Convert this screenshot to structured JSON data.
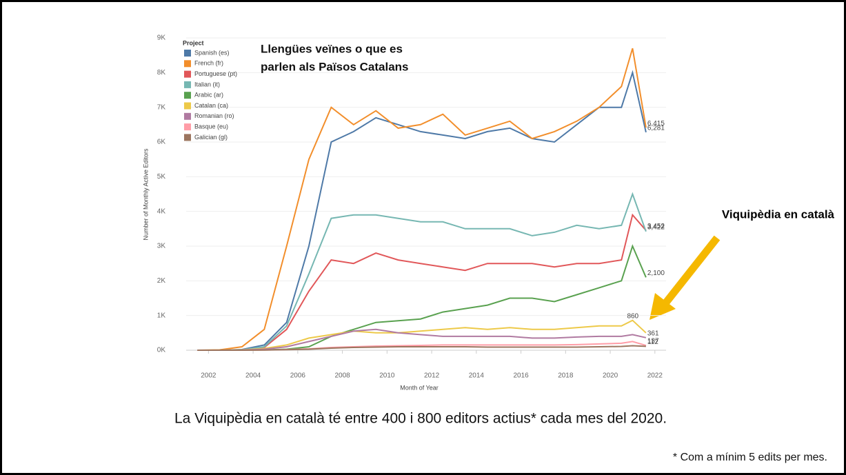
{
  "chart_data": {
    "type": "line",
    "annotation_lines": [
      "Llengües veïnes o que es",
      "parlen als Països Catalans"
    ],
    "legend_title": "Project",
    "x_label": "Month of Year",
    "y_label": "Number of Monthly Active Editors",
    "x": [
      2001.5,
      2002.5,
      2003.5,
      2004.5,
      2005.5,
      2006.5,
      2007.5,
      2008.5,
      2009.5,
      2010.5,
      2011.5,
      2012.5,
      2013.5,
      2014.5,
      2015.5,
      2016.5,
      2017.5,
      2018.5,
      2019.5,
      2020.5,
      2021,
      2021.6
    ],
    "series": [
      {
        "name": "Spanish (es)",
        "color": "#4e79a7",
        "values": [
          0,
          0,
          20,
          150,
          800,
          3000,
          6000,
          6300,
          6700,
          6500,
          6300,
          6200,
          6100,
          6300,
          6400,
          6100,
          6000,
          6500,
          7000,
          7000,
          8000,
          6281
        ],
        "value_labels": [
          null,
          null,
          null,
          null,
          null,
          null,
          null,
          null,
          null,
          null,
          null,
          null,
          null,
          null,
          null,
          null,
          null,
          null,
          null,
          null,
          null,
          "6,281"
        ]
      },
      {
        "name": "French (fr)",
        "color": "#f28e2b",
        "values": [
          0,
          10,
          100,
          600,
          3000,
          5500,
          7000,
          6500,
          6900,
          6400,
          6500,
          6800,
          6200,
          6400,
          6600,
          6100,
          6300,
          6600,
          7000,
          7600,
          8700,
          6415
        ],
        "value_labels": [
          null,
          null,
          null,
          null,
          null,
          null,
          null,
          null,
          null,
          null,
          null,
          null,
          null,
          null,
          null,
          null,
          null,
          null,
          null,
          null,
          null,
          "6,415"
        ]
      },
      {
        "name": "Portuguese (pt)",
        "color": "#e15759",
        "values": [
          0,
          0,
          10,
          80,
          600,
          1700,
          2600,
          2500,
          2800,
          2600,
          2500,
          2400,
          2300,
          2500,
          2500,
          2500,
          2400,
          2500,
          2500,
          2600,
          3900,
          3452
        ],
        "value_labels": [
          null,
          null,
          null,
          null,
          null,
          null,
          null,
          null,
          null,
          null,
          null,
          null,
          null,
          null,
          null,
          null,
          null,
          null,
          null,
          null,
          null,
          "3,452"
        ]
      },
      {
        "name": "Italian (it)",
        "color": "#76b7b2",
        "values": [
          0,
          0,
          10,
          100,
          700,
          2200,
          3800,
          3900,
          3900,
          3800,
          3700,
          3700,
          3500,
          3500,
          3500,
          3300,
          3400,
          3600,
          3500,
          3600,
          4500,
          3422
        ],
        "value_labels": [
          null,
          null,
          null,
          null,
          null,
          null,
          null,
          null,
          null,
          null,
          null,
          null,
          null,
          null,
          null,
          null,
          null,
          null,
          null,
          null,
          null,
          "3,422"
        ]
      },
      {
        "name": "Arabic (ar)",
        "color": "#59a14f",
        "values": [
          0,
          0,
          0,
          10,
          30,
          100,
          400,
          600,
          800,
          850,
          900,
          1100,
          1200,
          1300,
          1500,
          1500,
          1400,
          1600,
          1800,
          2000,
          3000,
          2100
        ],
        "value_labels": [
          null,
          null,
          null,
          null,
          null,
          null,
          null,
          null,
          null,
          null,
          null,
          null,
          null,
          null,
          null,
          null,
          null,
          null,
          null,
          null,
          null,
          "2,100"
        ]
      },
      {
        "name": "Catalan (ca)",
        "color": "#edc948",
        "values": [
          0,
          0,
          10,
          50,
          150,
          350,
          450,
          550,
          500,
          500,
          550,
          600,
          650,
          600,
          650,
          600,
          600,
          650,
          700,
          700,
          860,
          500
        ],
        "value_labels": [
          null,
          null,
          null,
          null,
          null,
          null,
          null,
          null,
          null,
          null,
          null,
          null,
          null,
          null,
          null,
          null,
          null,
          null,
          null,
          null,
          "860",
          null
        ]
      },
      {
        "name": "Romanian (ro)",
        "color": "#b07aa1",
        "values": [
          0,
          0,
          5,
          30,
          100,
          250,
          400,
          550,
          600,
          500,
          450,
          400,
          400,
          400,
          400,
          350,
          350,
          380,
          400,
          400,
          450,
          361
        ],
        "value_labels": [
          null,
          null,
          null,
          null,
          null,
          null,
          null,
          null,
          null,
          null,
          null,
          null,
          null,
          null,
          null,
          null,
          null,
          null,
          null,
          null,
          null,
          "361"
        ]
      },
      {
        "name": "Basque (eu)",
        "color": "#ff9da7",
        "values": [
          0,
          0,
          0,
          5,
          20,
          40,
          80,
          100,
          120,
          130,
          140,
          150,
          150,
          150,
          150,
          150,
          150,
          160,
          180,
          200,
          250,
          137
        ],
        "value_labels": [
          null,
          null,
          null,
          null,
          null,
          null,
          null,
          null,
          null,
          null,
          null,
          null,
          null,
          null,
          null,
          null,
          null,
          null,
          null,
          null,
          null,
          "137"
        ]
      },
      {
        "name": "Galician (gl)",
        "color": "#9c755f",
        "values": [
          0,
          0,
          0,
          5,
          15,
          30,
          60,
          80,
          90,
          100,
          100,
          100,
          100,
          90,
          90,
          90,
          90,
          90,
          100,
          110,
          130,
          112
        ],
        "value_labels": [
          null,
          null,
          null,
          null,
          null,
          null,
          null,
          null,
          null,
          null,
          null,
          null,
          null,
          null,
          null,
          null,
          null,
          null,
          null,
          null,
          null,
          "112"
        ]
      }
    ],
    "xlim": [
      2001,
      2022.5
    ],
    "xticks": [
      2002,
      2004,
      2006,
      2008,
      2010,
      2012,
      2014,
      2016,
      2018,
      2020,
      2022
    ],
    "ylim": [
      0,
      9000
    ],
    "yticks": [
      {
        "value": 0,
        "label": "0K"
      },
      {
        "value": 1000,
        "label": "1K"
      },
      {
        "value": 2000,
        "label": "2K"
      },
      {
        "value": 3000,
        "label": "3K"
      },
      {
        "value": 4000,
        "label": "4K"
      },
      {
        "value": 5000,
        "label": "5K"
      },
      {
        "value": 6000,
        "label": "6K"
      },
      {
        "value": 7000,
        "label": "7K"
      },
      {
        "value": 8000,
        "label": "8K"
      },
      {
        "value": 9000,
        "label": "9K"
      }
    ],
    "grid": true,
    "legend": "upper left"
  },
  "slide": {
    "callout": "Viquipèdia en català",
    "caption": "La Viquipèdia en català té entre 400 i 800 editors actius* cada mes del 2020.",
    "footnote": "* Com a mínim 5 edits per mes."
  }
}
